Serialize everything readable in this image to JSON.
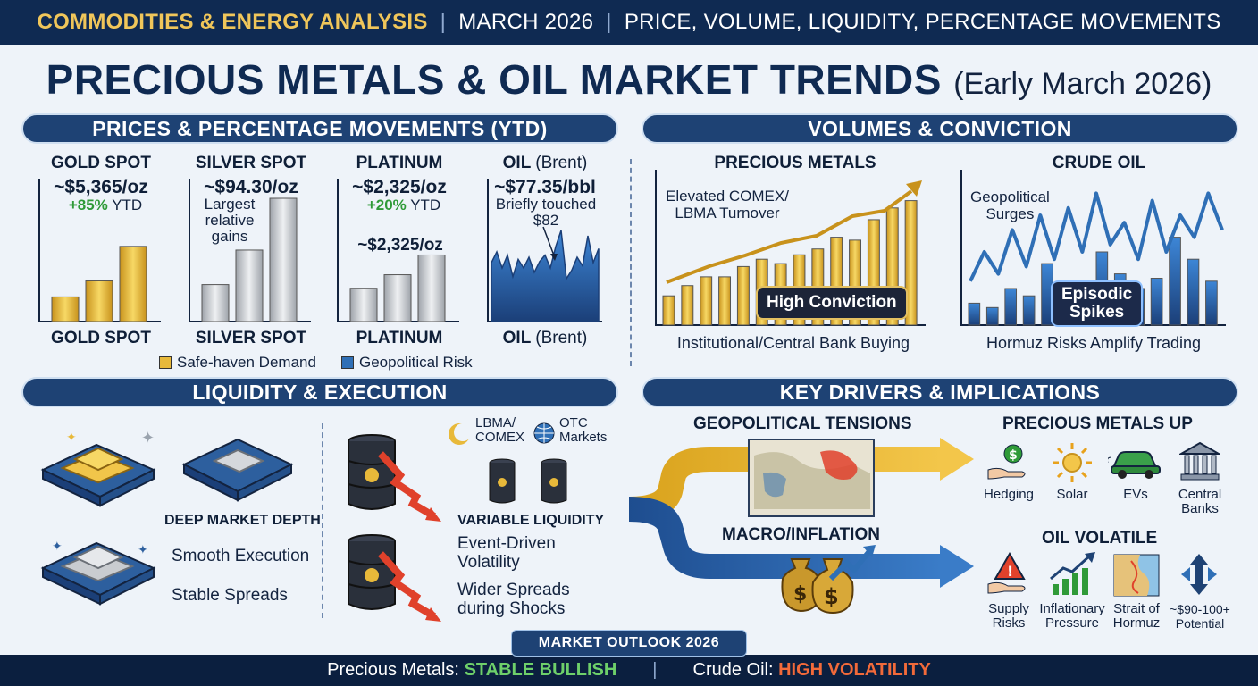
{
  "header": {
    "category": "COMMODITIES & ENERGY ANALYSIS",
    "date": "MARCH 2026",
    "topics": "PRICE, VOLUME, LIQUIDITY, PERCENTAGE MOVEMENTS",
    "separator": "|"
  },
  "title": {
    "main": "PRECIOUS METALS & OIL MARKET TRENDS",
    "sub": "(Early March 2026)"
  },
  "sections": {
    "prices": "PRICES & PERCENTAGE MOVEMENTS (YTD)",
    "volumes": "VOLUMES & CONVICTION",
    "liquidity": "LIQUIDITY & EXECUTION",
    "drivers": "KEY DRIVERS & IMPLICATIONS"
  },
  "colors": {
    "gold": "#e8b93a",
    "silver": "#c9ccd0",
    "oil_blue": "#2f6fb6",
    "navy": "#1e4274",
    "green": "#2f9a38",
    "red": "#e0412b"
  },
  "chart_data": [
    {
      "type": "bar",
      "title": "GOLD SPOT",
      "price": "~$5,365/oz",
      "change": "+85%",
      "change_suffix": "YTD",
      "xlabel": "GOLD SPOT",
      "values": [
        0.2,
        0.33,
        0.61
      ],
      "color": "#e8b93a"
    },
    {
      "type": "bar",
      "title": "SILVER SPOT",
      "price": "~$94.30/oz",
      "note": [
        "Largest",
        "relative",
        "gains"
      ],
      "xlabel": "SILVER SPOT",
      "values": [
        0.3,
        0.58,
        1.0
      ],
      "color": "#c9ccd0"
    },
    {
      "type": "bar",
      "title": "PLATINUM",
      "price": "~$2,325/oz",
      "change": "+20%",
      "change_suffix": "YTD",
      "inner_label": "~$2,325/oz",
      "xlabel": "PLATINUM",
      "values": [
        0.27,
        0.38,
        0.54
      ],
      "color": "#c9ccd0"
    },
    {
      "type": "area",
      "title_strong": "OIL",
      "title_light": "(Brent)",
      "price": "~$77.35/bbl",
      "note": [
        "Briefly touched",
        "$82"
      ],
      "xlabel_strong": "OIL",
      "xlabel_light": "(Brent)",
      "values": [
        0.55,
        0.65,
        0.5,
        0.62,
        0.42,
        0.58,
        0.5,
        0.6,
        0.46,
        0.56,
        0.62,
        0.5,
        0.7,
        0.85,
        0.4,
        0.48,
        0.6,
        0.52,
        0.8,
        0.55,
        0.68
      ],
      "color": "#2f6fb6"
    },
    {
      "type": "bar",
      "title": "PRECIOUS METALS",
      "note": [
        "Elevated COMEX/",
        "LBMA Turnover"
      ],
      "badge": "High Conviction",
      "xlabel": "Institutional/Central Bank Buying",
      "values": [
        0.2,
        0.27,
        0.33,
        0.33,
        0.4,
        0.45,
        0.42,
        0.48,
        0.52,
        0.6,
        0.58,
        0.72,
        0.8,
        0.85
      ],
      "color": "#e8b93a"
    },
    {
      "type": "bar",
      "title": "CRUDE OIL",
      "note": [
        "Geopolitical",
        "Surges"
      ],
      "badge": [
        "Episodic",
        "Spikes"
      ],
      "xlabel": "Hormuz Risks Amplify Trading",
      "values": [
        0.15,
        0.12,
        0.25,
        0.2,
        0.42,
        0.3,
        0.2,
        0.5,
        0.35,
        0.25,
        0.32,
        0.6,
        0.45,
        0.3
      ],
      "line": [
        0.3,
        0.5,
        0.35,
        0.65,
        0.4,
        0.75,
        0.45,
        0.8,
        0.5,
        0.9,
        0.55,
        0.7,
        0.45,
        0.85,
        0.5,
        0.75,
        0.6,
        0.9,
        0.65
      ],
      "color": "#2f6fb6"
    }
  ],
  "legend": [
    {
      "label": "Safe-haven Demand",
      "color": "#e8b93a"
    },
    {
      "label": "Geopolitical Risk",
      "color": "#2f6fb6"
    }
  ],
  "liquidity": {
    "metals_title": "DEEP MARKET DEPTH",
    "metals_points": [
      "Smooth Execution",
      "Stable Spreads"
    ],
    "venue1": [
      "LBMA/",
      "COMEX"
    ],
    "venue2": [
      "OTC",
      "Markets"
    ],
    "oil_title": "VARIABLE LIQUIDITY",
    "oil_points": [
      [
        "Event-Driven",
        "Volatility"
      ],
      [
        "Wider Spreads",
        "during Shocks"
      ]
    ]
  },
  "drivers": {
    "geo": "GEOPOLITICAL TENSIONS",
    "macro": "MACRO/INFLATION",
    "metals_up": "PRECIOUS METALS UP",
    "metals_icons": [
      {
        "name": "Hedging",
        "icon": "hand-money-icon"
      },
      {
        "name": "Solar",
        "icon": "sun-icon"
      },
      {
        "name": "EVs",
        "icon": "car-icon"
      },
      {
        "name": [
          "Central",
          "Banks"
        ],
        "icon": "bank-icon"
      }
    ],
    "oil_volatile": "OIL VOLATILE",
    "oil_icons": [
      {
        "name": [
          "Supply",
          "Risks"
        ],
        "icon": "warning-hand-icon"
      },
      {
        "name": [
          "Inflationary",
          "Pressure"
        ],
        "icon": "rising-bars-icon"
      },
      {
        "name": [
          "Strait of",
          "Hormuz"
        ],
        "icon": "map-icon"
      },
      {
        "name": [
          "~$90-100+",
          "Potential"
        ],
        "icon": "arrows-icon"
      }
    ]
  },
  "footer": {
    "outlook": "MARKET OUTLOOK 2026",
    "metals_label": "Precious Metals:",
    "metals_value": "STABLE BULLISH",
    "oil_label": "Crude Oil:",
    "oil_value": "HIGH VOLATILITY",
    "separator": "|"
  }
}
